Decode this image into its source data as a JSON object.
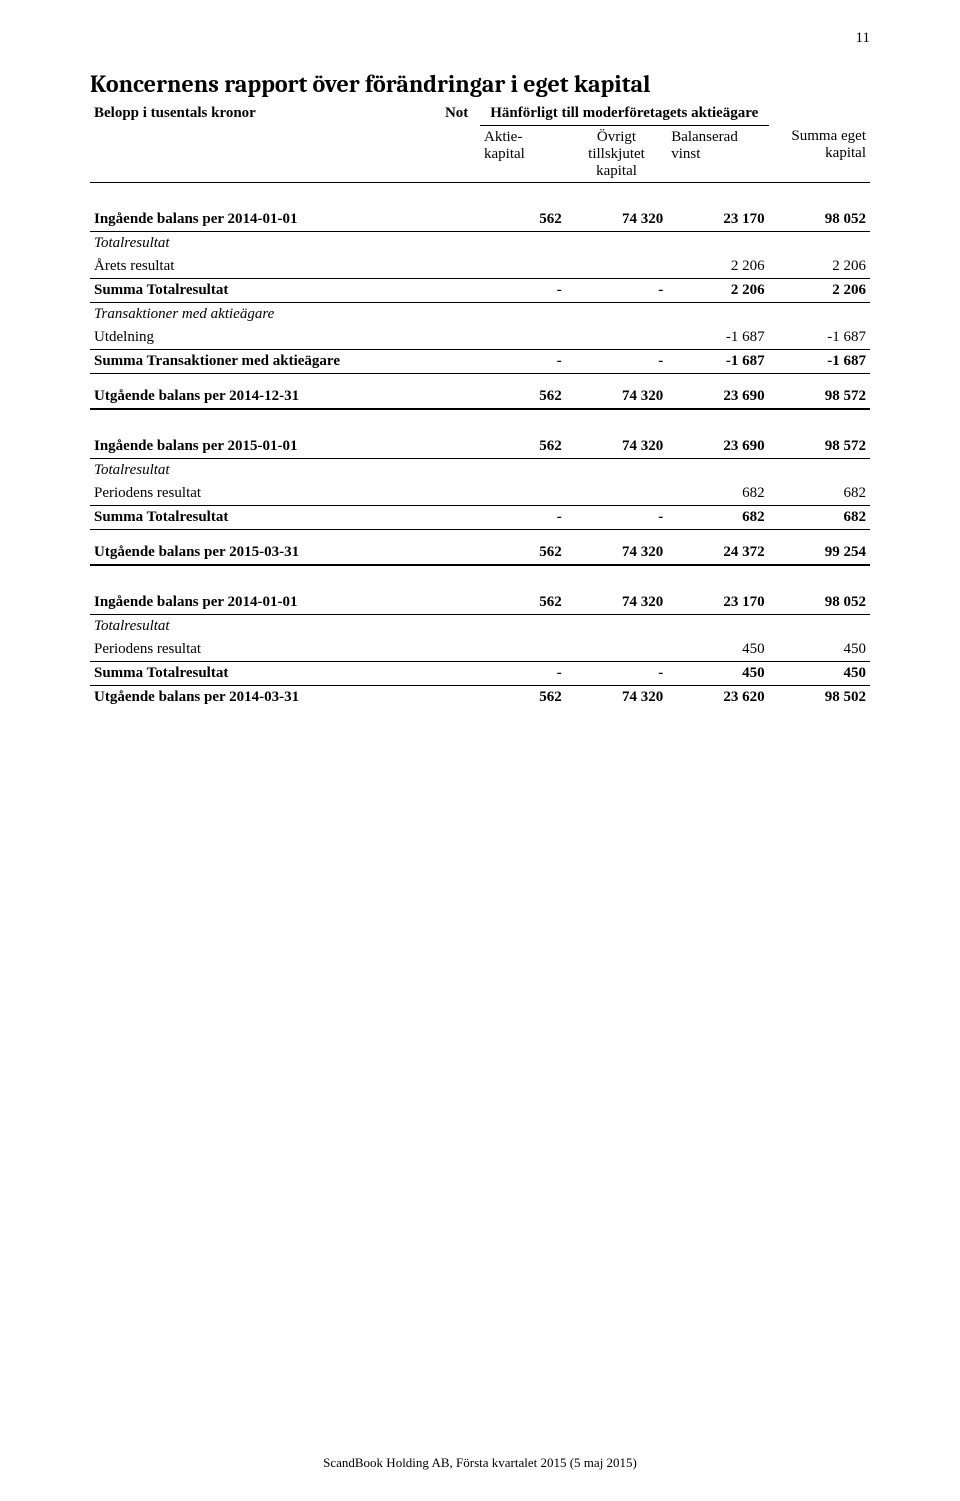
{
  "page_number": "11",
  "title": "Koncernens rapport över förändringar i eget kapital",
  "header": {
    "amounts_label": "Belopp i tusentals kronor",
    "not": "Not",
    "group_header": "Hänförligt till moderföretagets aktieägare",
    "col_aktie": "Aktie-\nkapital",
    "col_ovrigt": "Övrigt\ntillskjutet\nkapital",
    "col_balanserad": "Balanserad vinst",
    "col_summa": "Summa eget\nkapital"
  },
  "labels": {
    "totalresultat": "Totalresultat",
    "arets_resultat": "Årets resultat",
    "summa_totalresultat": "Summa Totalresultat",
    "trans_med_agare": "Transaktioner med aktieägare",
    "utdelning": "Utdelning",
    "summa_trans": "Summa Transaktioner med aktieägare",
    "periodens_resultat": "Periodens resultat"
  },
  "blocks": {
    "b1": {
      "opening_label": "Ingående balans per 2014-01-01",
      "opening": {
        "a": "562",
        "b": "74 320",
        "c": "23 170",
        "d": "98 052"
      },
      "arets": {
        "c": "2 206",
        "d": "2 206"
      },
      "summa_tot": {
        "a": "-",
        "b": "-",
        "c": "2 206",
        "d": "2 206"
      },
      "utdelning": {
        "c": "-1 687",
        "d": "-1 687"
      },
      "summa_trans": {
        "a": "-",
        "b": "-",
        "c": "-1 687",
        "d": "-1 687"
      },
      "closing_label": "Utgående balans per 2014-12-31",
      "closing": {
        "a": "562",
        "b": "74 320",
        "c": "23 690",
        "d": "98 572"
      }
    },
    "b2": {
      "opening_label": "Ingående balans per 2015-01-01",
      "opening": {
        "a": "562",
        "b": "74 320",
        "c": "23 690",
        "d": "98 572"
      },
      "periodens": {
        "c": "682",
        "d": "682"
      },
      "summa_tot": {
        "a": "-",
        "b": "-",
        "c": "682",
        "d": "682"
      },
      "closing_label": "Utgående balans per 2015-03-31",
      "closing": {
        "a": "562",
        "b": "74 320",
        "c": "24 372",
        "d": "99 254"
      }
    },
    "b3": {
      "opening_label": "Ingående balans per 2014-01-01",
      "opening": {
        "a": "562",
        "b": "74 320",
        "c": "23 170",
        "d": "98 052"
      },
      "periodens": {
        "c": "450",
        "d": "450"
      },
      "summa_tot": {
        "a": "-",
        "b": "-",
        "c": "450",
        "d": "450"
      },
      "closing_label": "Utgående balans per 2014-03-31",
      "closing": {
        "a": "562",
        "b": "74 320",
        "c": "23 620",
        "d": "98 502"
      }
    }
  },
  "footer": "ScandBook Holding AB, Första kvartalet 2015 (5 maj 2015)"
}
